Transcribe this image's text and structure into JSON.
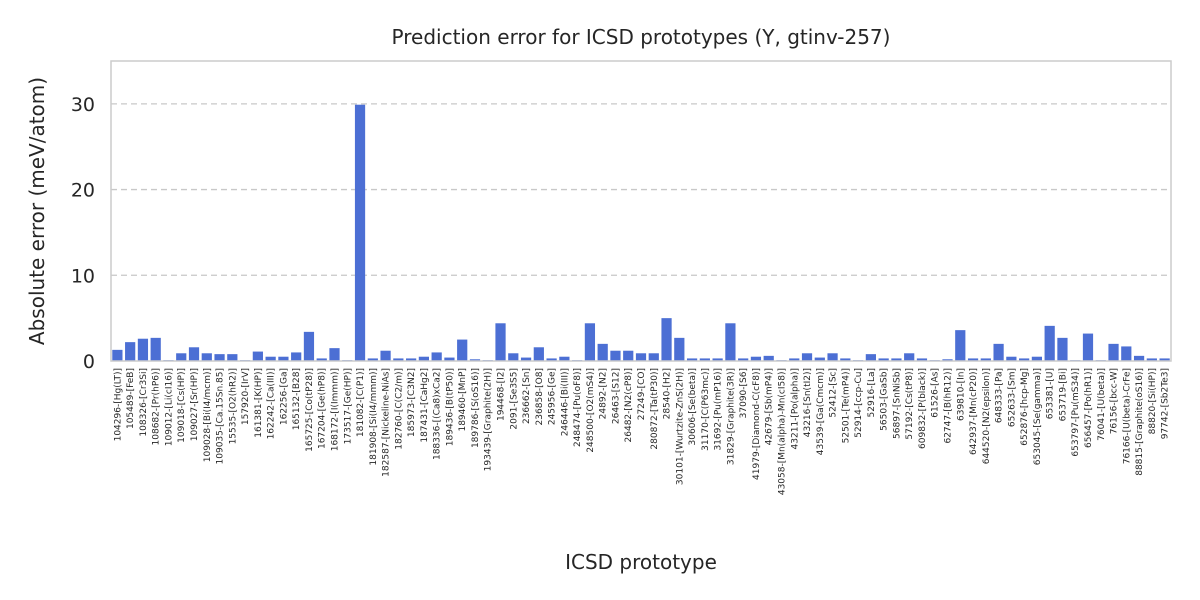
{
  "chart_data": {
    "type": "bar",
    "title": "Prediction error for ICSD prototypes (Y, gtinv-257)",
    "xlabel": "ICSD prototype",
    "ylabel": "Absolute error (meV/atom)",
    "ylim": [
      0,
      35
    ],
    "yticks": [
      0,
      10,
      20,
      30
    ],
    "grid": "y-dashed",
    "bar_color": "#4c6fd4",
    "categories": [
      "104296-[Hg(LT)]",
      "105489-[FeB]",
      "108326-[Cr3Si]",
      "108682-[Pr(hP6)]",
      "109012-[Li(cI16)]",
      "109018-[Cs(HP)]",
      "109027-[Sr(HP)]",
      "109028-[Bi(I4/mcm)]",
      "109035-[Ca.15Sn.85]",
      "15535-[O2(hR2)]",
      "157920-[IrV]",
      "161381-[K(HP)]",
      "162242-[Ca(III)]",
      "162256-[Ga]",
      "165132-[B28]",
      "165725-[Co(tP28)]",
      "167204-[Ge(hP8)]",
      "168172-[I(Immm)]",
      "173517-[Ge(HP)]",
      "181082-[C(P1)]",
      "181908-[Si(I4/mmm)]",
      "182587-[Nickeline-NiAs]",
      "182760-[C(C2/m)]",
      "185973-[C3N2]",
      "187431-[CaHg2]",
      "188336-[(Ca8)xCa2]",
      "189436-[B(tP50)]",
      "189460-[MnP]",
      "189786-[S(oS16)]",
      "193439-[Graphite(2H)]",
      "194468-[I2]",
      "2091-[Se3S5]",
      "236662-[Sn]",
      "236858-[O8]",
      "245956-[Ge]",
      "246446-[Bi(III)]",
      "248474-[Pu(oF8)]",
      "248500-[O2(mS4)]",
      "24892-[N2]",
      "26463-[S12]",
      "26482-[N2(cP8)]",
      "27249-[CO]",
      "280872-[Ta(tP30)]",
      "28540-[H2]",
      "30101-[Wurtzite-ZnS(2H)]",
      "30606-[Se(beta)]",
      "31170-[C(P63mc)]",
      "31692-[Pu(mP16)]",
      "31829-[Graphite(3R)]",
      "37090-[S6]",
      "41979-[Diamond-C(cF8)]",
      "42679-[Sb(mP4)]",
      "43058-[Mn(alpha)-Mn(cI58)]",
      "43211-[Po(alpha)]",
      "43216-[Sn(tI2)]",
      "43539-[Ga(Cmcm)]",
      "52412-[Sc]",
      "52501-[Te(mP4)]",
      "52914-[ccp-Cu]",
      "52916-[La]",
      "56503-[GaSb]",
      "56897-[SnNiSb]",
      "57192-[Cs(tP8)]",
      "609832-[P(black)]",
      "61526-[As]",
      "62747-[B(hR12)]",
      "639810-[In]",
      "642937-[Mn(cP20)]",
      "644520-[N2(epsilon)]",
      "648333-[Pa]",
      "652633-[Sm]",
      "652876-[hcp-Mg]",
      "653045-[Se(gamma)]",
      "653381-[U]",
      "653719-[Bi]",
      "653797-[Pu(mS34)]",
      "656457-[Po(hR1)]",
      "76041-[U(beta)]",
      "76156-[bcc-W]",
      "76166-[U(beta)-CrFe]",
      "88815-[Graphite(oS16)]",
      "88820-[Si(HP)]",
      "97742-[Sb2Te3]"
    ],
    "values": [
      1.3,
      2.2,
      2.6,
      2.7,
      0.1,
      0.9,
      1.6,
      0.9,
      0.8,
      0.8,
      0.1,
      1.1,
      0.5,
      0.5,
      1.0,
      3.4,
      0.3,
      1.5,
      0.1,
      29.9,
      0.3,
      1.2,
      0.3,
      0.3,
      0.5,
      1.0,
      0.4,
      2.5,
      0.2,
      0.1,
      4.4,
      0.9,
      0.4,
      1.6,
      0.3,
      0.5,
      0.1,
      4.4,
      2.0,
      1.2,
      1.2,
      0.9,
      0.9,
      5.0,
      2.7,
      0.3,
      0.3,
      0.3,
      4.4,
      0.3,
      0.5,
      0.6,
      0.1,
      0.3,
      0.9,
      0.4,
      0.9,
      0.3,
      0.1,
      0.8,
      0.3,
      0.3,
      0.9,
      0.3,
      0.1,
      0.2,
      3.6,
      0.3,
      0.3,
      2.0,
      0.5,
      0.3,
      0.5,
      4.1,
      2.7,
      0.1,
      3.2,
      0.1,
      2.0,
      1.7,
      0.6,
      0.3,
      0.3
    ]
  }
}
